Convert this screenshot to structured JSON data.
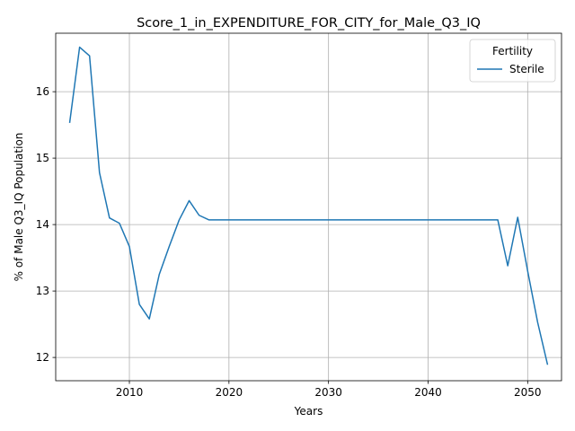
{
  "chart_data": {
    "type": "line",
    "title": "Score_1_in_EXPENDITURE_FOR_CITY_for_Male_Q3_IQ",
    "xlabel": "Years",
    "ylabel": "% of Male Q3_IQ Population",
    "xlim": [
      2002.6,
      2053.4
    ],
    "ylim": [
      11.65,
      16.88
    ],
    "xticks": [
      2010,
      2020,
      2030,
      2040,
      2050
    ],
    "yticks": [
      12,
      13,
      14,
      15,
      16
    ],
    "grid": true,
    "legend": {
      "title": "Fertility",
      "placement": "top-right"
    },
    "series": [
      {
        "name": "Sterile",
        "color": "#1f77b4",
        "x": [
          2004,
          2005,
          2006,
          2007,
          2008,
          2009,
          2010,
          2011,
          2012,
          2013,
          2014,
          2015,
          2016,
          2017,
          2018,
          2019,
          2020,
          2025,
          2030,
          2035,
          2040,
          2045,
          2046,
          2047,
          2048,
          2049,
          2050,
          2051,
          2052
        ],
        "y": [
          15.53,
          16.67,
          16.54,
          14.78,
          14.1,
          14.02,
          13.67,
          12.8,
          12.58,
          13.25,
          13.67,
          14.07,
          14.36,
          14.14,
          14.07,
          14.07,
          14.07,
          14.07,
          14.07,
          14.07,
          14.07,
          14.07,
          14.07,
          14.07,
          13.38,
          14.11,
          13.3,
          12.53,
          11.89
        ]
      }
    ]
  }
}
